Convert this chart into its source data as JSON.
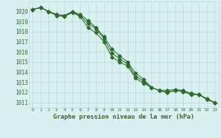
{
  "xlabel": "Graphe pression niveau de la mer (hPa)",
  "x_values": [
    0,
    1,
    2,
    3,
    4,
    5,
    6,
    7,
    8,
    9,
    10,
    11,
    12,
    13,
    14,
    15,
    16,
    17,
    18,
    19,
    20,
    21,
    22,
    23
  ],
  "line1": [
    1020.2,
    1020.4,
    1020.0,
    1019.7,
    1019.6,
    1020.0,
    1019.7,
    1019.1,
    1018.4,
    1017.5,
    1016.3,
    1015.6,
    1015.0,
    1013.9,
    1013.3,
    1012.5,
    1012.2,
    1012.2,
    1012.3,
    1012.2,
    1011.9,
    1011.8,
    1011.4,
    1011.0
  ],
  "line2": [
    1020.2,
    1020.4,
    1020.0,
    1019.7,
    1019.6,
    1019.9,
    1019.6,
    1018.8,
    1018.3,
    1017.3,
    1015.9,
    1015.3,
    1014.8,
    1013.6,
    1013.1,
    1012.5,
    1012.2,
    1012.0,
    1012.2,
    1012.1,
    1011.8,
    1011.8,
    1011.3,
    1011.0
  ],
  "line3": [
    1020.2,
    1020.4,
    1020.0,
    1019.6,
    1019.5,
    1019.9,
    1019.5,
    1018.4,
    1017.9,
    1017.0,
    1015.5,
    1015.0,
    1014.6,
    1013.4,
    1012.9,
    1012.5,
    1012.2,
    1012.0,
    1012.2,
    1012.1,
    1011.8,
    1011.8,
    1011.3,
    1011.0
  ],
  "line_color": "#2d6a2d",
  "bg_color": "#d8f0f0",
  "grid_color": "#b8d8d8",
  "ylim_min": 1010.5,
  "ylim_max": 1021.0,
  "marker": "D",
  "marker_size": 2.5,
  "line_width": 0.8,
  "fig_width": 3.2,
  "fig_height": 2.0,
  "dpi": 100
}
